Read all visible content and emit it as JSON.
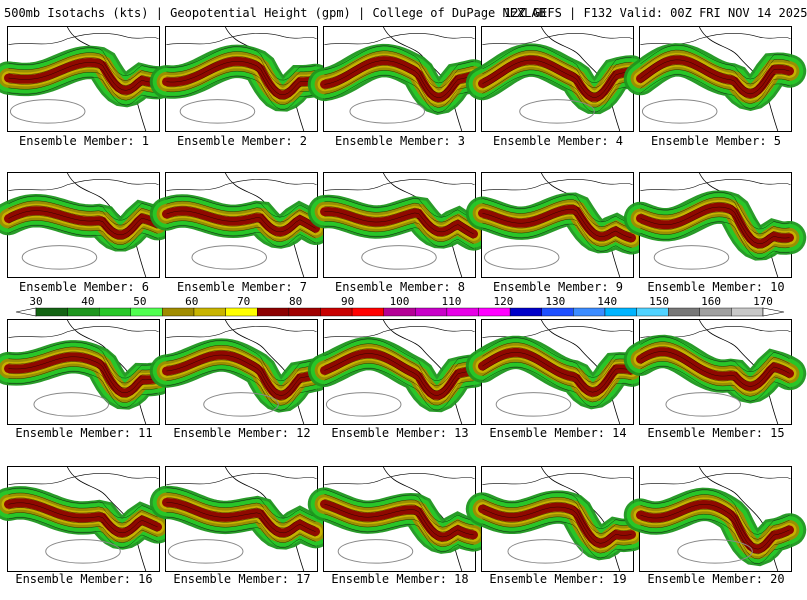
{
  "header": {
    "left": "500mb Isotachs (kts) | Geopotential Height (gpm) | College of DuPage NEXLAB",
    "right": "12Z GEFS | F132 Valid: 00Z FRI NOV 14 2025"
  },
  "members": [
    "Ensemble Member: 1",
    "Ensemble Member: 2",
    "Ensemble Member: 3",
    "Ensemble Member: 4",
    "Ensemble Member: 5",
    "Ensemble Member: 6",
    "Ensemble Member: 7",
    "Ensemble Member: 8",
    "Ensemble Member: 9",
    "Ensemble Member: 10",
    "Ensemble Member: 11",
    "Ensemble Member: 12",
    "Ensemble Member: 13",
    "Ensemble Member: 14",
    "Ensemble Member: 15",
    "Ensemble Member: 16",
    "Ensemble Member: 17",
    "Ensemble Member: 18",
    "Ensemble Member: 19",
    "Ensemble Member: 20"
  ],
  "legend": {
    "units": "kts",
    "labels": [
      "30",
      "40",
      "50",
      "60",
      "70",
      "80",
      "90",
      "100",
      "110",
      "120",
      "130",
      "140",
      "150",
      "160",
      "170"
    ],
    "colors": [
      "#146414",
      "#1e961e",
      "#28c828",
      "#50ff50",
      "#a08c00",
      "#c8b400",
      "#ffff00",
      "#8c0000",
      "#a00000",
      "#c80000",
      "#ff0000",
      "#b40096",
      "#c800c8",
      "#e600e6",
      "#ff00ff",
      "#0000c8",
      "#1e50ff",
      "#3c8cff",
      "#00b4ff",
      "#50d2ff",
      "#787878",
      "#a0a0a0",
      "#c8c8c8"
    ]
  }
}
